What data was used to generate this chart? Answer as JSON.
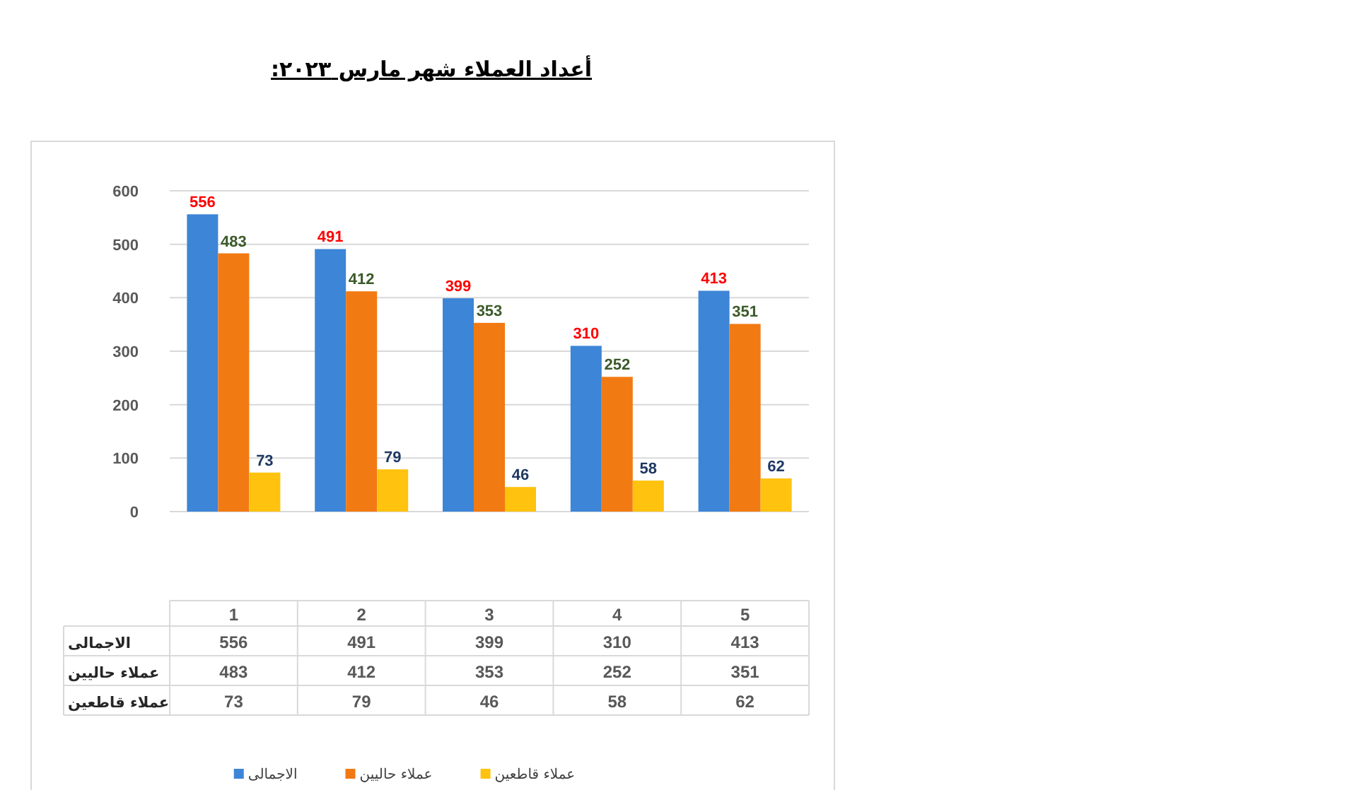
{
  "chart_data": {
    "type": "bar",
    "title": "أعداد العملاء شهر مارس ٢٠٢٣:",
    "categories": [
      "1",
      "2",
      "3",
      "4",
      "5"
    ],
    "series": [
      {
        "name": "الاجمالى",
        "color": "#3d85d6",
        "values": [
          556,
          491,
          399,
          310,
          413
        ]
      },
      {
        "name": "عملاء حاليين",
        "color": "#f27a12",
        "values": [
          483,
          412,
          353,
          252,
          351
        ]
      },
      {
        "name": "عملاء قاطعين",
        "color": "#ffc20e",
        "values": [
          73,
          79,
          46,
          58,
          62
        ]
      }
    ],
    "ylim": [
      0,
      600
    ],
    "yticks": [
      0,
      100,
      200,
      300,
      400,
      500,
      600
    ],
    "grid": "y",
    "legend": "bottom",
    "data_labels": true,
    "annotations": [
      "556",
      "483",
      "73",
      "491",
      "412",
      "79",
      "399",
      "353",
      "46",
      "310",
      "252",
      "58",
      "413",
      "351",
      "62"
    ]
  }
}
